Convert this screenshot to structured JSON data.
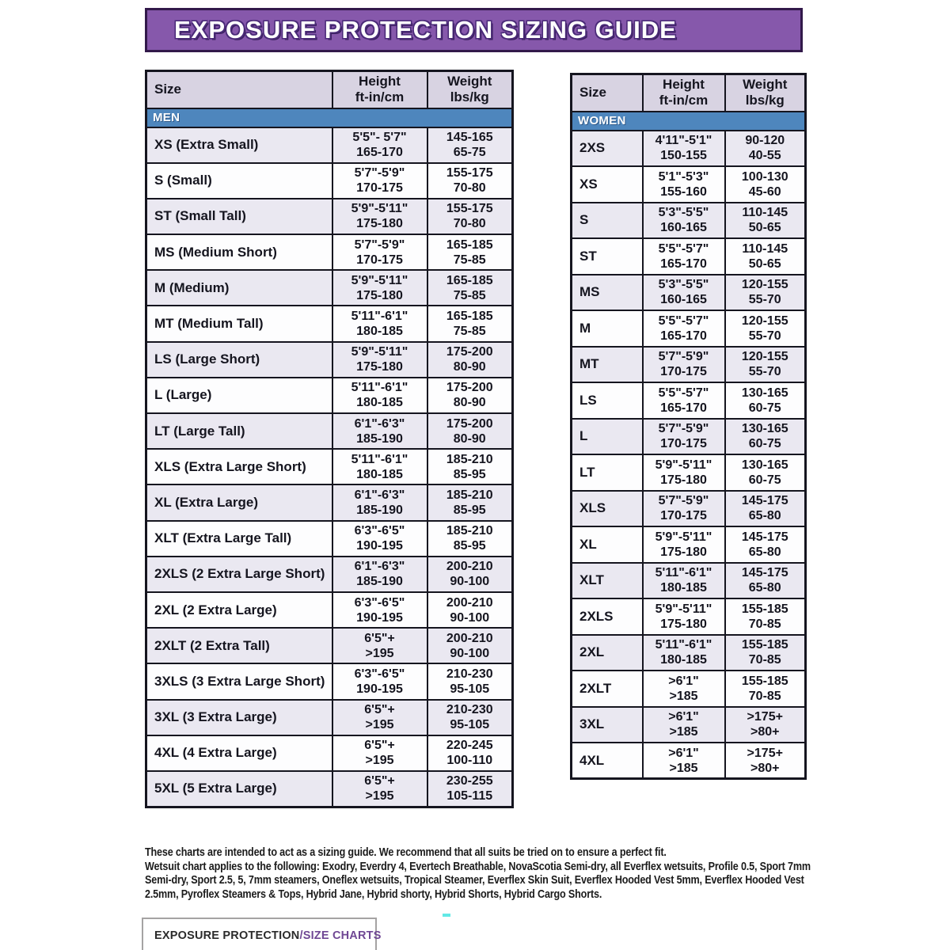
{
  "page": {
    "title": "EXPOSURE PROTECTION SIZING GUIDE"
  },
  "table_header": {
    "size": "Size",
    "height_label": "Height",
    "height_unit": "ft-in/cm",
    "weight_label": "Weight",
    "weight_unit": "lbs/kg"
  },
  "men": {
    "band": "MEN",
    "rows": [
      [
        "XS (Extra Small)",
        "5'5\"- 5'7\"",
        "165-170",
        "145-165",
        "65-75"
      ],
      [
        "S (Small)",
        "5'7\"-5'9\"",
        "170-175",
        "155-175",
        "70-80"
      ],
      [
        "ST (Small Tall)",
        "5'9\"-5'11\"",
        "175-180",
        "155-175",
        "70-80"
      ],
      [
        "MS (Medium Short)",
        "5'7\"-5'9\"",
        "170-175",
        "165-185",
        "75-85"
      ],
      [
        "M (Medium)",
        "5'9\"-5'11\"",
        "175-180",
        "165-185",
        "75-85"
      ],
      [
        "MT (Medium Tall)",
        "5'11\"-6'1\"",
        "180-185",
        "165-185",
        "75-85"
      ],
      [
        "LS (Large Short)",
        "5'9\"-5'11\"",
        "175-180",
        "175-200",
        "80-90"
      ],
      [
        "L (Large)",
        "5'11\"-6'1\"",
        "180-185",
        "175-200",
        "80-90"
      ],
      [
        "LT (Large Tall)",
        "6'1\"-6'3\"",
        "185-190",
        "175-200",
        "80-90"
      ],
      [
        "XLS (Extra Large Short)",
        "5'11\"-6'1\"",
        "180-185",
        "185-210",
        "85-95"
      ],
      [
        "XL (Extra Large)",
        "6'1\"-6'3\"",
        "185-190",
        "185-210",
        "85-95"
      ],
      [
        "XLT (Extra Large Tall)",
        "6'3\"-6'5\"",
        "190-195",
        "185-210",
        "85-95"
      ],
      [
        "2XLS (2 Extra Large Short)",
        "6'1\"-6'3\"",
        "185-190",
        "200-210",
        "90-100"
      ],
      [
        "2XL (2 Extra Large)",
        "6'3\"-6'5\"",
        "190-195",
        "200-210",
        "90-100"
      ],
      [
        "2XLT (2 Extra Tall)",
        "6'5\"+",
        ">195",
        "200-210",
        "90-100"
      ],
      [
        "3XLS (3 Extra Large Short)",
        "6'3\"-6'5\"",
        "190-195",
        "210-230",
        "95-105"
      ],
      [
        "3XL (3 Extra Large)",
        "6'5\"+",
        ">195",
        "210-230",
        "95-105"
      ],
      [
        "4XL (4 Extra Large)",
        "6'5\"+",
        ">195",
        "220-245",
        "100-110"
      ],
      [
        "5XL (5 Extra Large)",
        "6'5\"+",
        ">195",
        "230-255",
        "105-115"
      ]
    ]
  },
  "women": {
    "band": "WOMEN",
    "rows": [
      [
        "2XS",
        "4'11\"-5'1\"",
        "150-155",
        "90-120",
        "40-55"
      ],
      [
        "XS",
        "5'1\"-5'3\"",
        "155-160",
        "100-130",
        "45-60"
      ],
      [
        "S",
        "5'3\"-5'5\"",
        "160-165",
        "110-145",
        "50-65"
      ],
      [
        "ST",
        "5'5\"-5'7\"",
        "165-170",
        "110-145",
        "50-65"
      ],
      [
        "MS",
        "5'3\"-5'5\"",
        "160-165",
        "120-155",
        "55-70"
      ],
      [
        "M",
        "5'5\"-5'7\"",
        "165-170",
        "120-155",
        "55-70"
      ],
      [
        "MT",
        "5'7\"-5'9\"",
        "170-175",
        "120-155",
        "55-70"
      ],
      [
        "LS",
        "5'5\"-5'7\"",
        "165-170",
        "130-165",
        "60-75"
      ],
      [
        "L",
        "5'7\"-5'9\"",
        "170-175",
        "130-165",
        "60-75"
      ],
      [
        "LT",
        "5'9\"-5'11\"",
        "175-180",
        "130-165",
        "60-75"
      ],
      [
        "XLS",
        "5'7\"-5'9\"",
        "170-175",
        "145-175",
        "65-80"
      ],
      [
        "XL",
        "5'9\"-5'11\"",
        "175-180",
        "145-175",
        "65-80"
      ],
      [
        "XLT",
        "5'11\"-6'1\"",
        "180-185",
        "145-175",
        "65-80"
      ],
      [
        "2XLS",
        "5'9\"-5'11\"",
        "175-180",
        "155-185",
        "70-85"
      ],
      [
        "2XL",
        "5'11\"-6'1\"",
        "180-185",
        "155-185",
        "70-85"
      ],
      [
        "2XLT",
        ">6'1\"",
        ">185",
        "155-185",
        "70-85"
      ],
      [
        "3XL",
        ">6'1\"",
        ">185",
        ">175+",
        ">80+"
      ],
      [
        "4XL",
        ">6'1\"",
        ">185",
        ">175+",
        ">80+"
      ]
    ]
  },
  "footnote": {
    "line1": "These charts are intended to act as a sizing guide. We recommend that all suits be tried on to ensure a perfect fit.",
    "line2": "Wetsuit chart applies to the following: Exodry, Everdry 4, Evertech Breathable, NovaScotia Semi-dry, all Everflex wetsuits, Profile 0.5, Sport 7mm Semi-dry, Sport 2.5, 5, 7mm steamers, Oneflex wetsuits, Tropical Steamer, Everflex Skin Suit, Everflex Hooded Vest 5mm, Everflex Hooded Vest 2.5mm, Pyroflex Steamers & Tops, Hybrid Jane, Hybrid shorty, Hybrid Shorts, Hybrid Cargo Shorts."
  },
  "footer_tab": {
    "primary": "EXPOSURE PROTECTION",
    "secondary": "/SIZE CHARTS"
  },
  "colors": {
    "banner": "#8658ab",
    "banner_border": "#32194a",
    "band_blue": "#4e86bd",
    "header_bg": "#d8d3e2",
    "row_alt_bg": "#eae8f1",
    "grid": "#15151f",
    "accent_purple": "#6f4794",
    "cyan_mark": "#62e9e6"
  }
}
